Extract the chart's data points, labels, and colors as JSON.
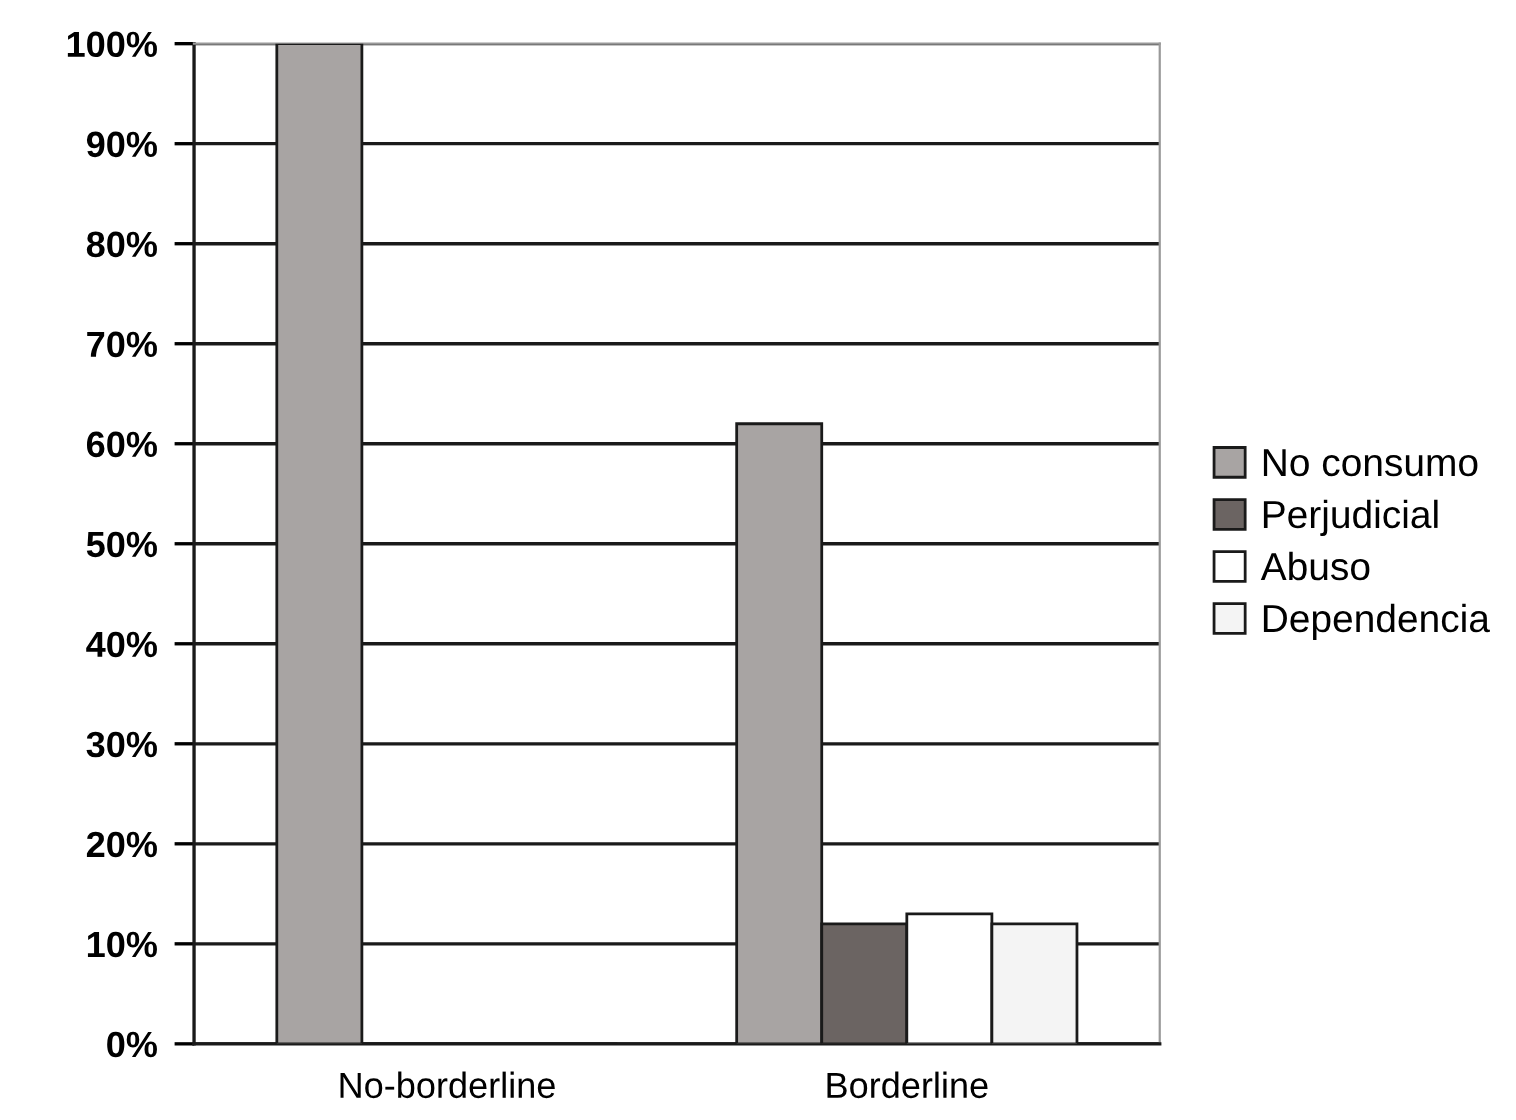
{
  "chart_data": {
    "type": "bar",
    "categories": [
      "No-borderline",
      "Borderline"
    ],
    "series": [
      {
        "name": "No consumo",
        "color": "#a8a4a3",
        "values": [
          100,
          62
        ]
      },
      {
        "name": "Perjudicial",
        "color": "#6b6462",
        "values": [
          0,
          12
        ]
      },
      {
        "name": "Abuso",
        "color": "#ffffff",
        "values": [
          0,
          13
        ]
      },
      {
        "name": "Dependencia",
        "color": "#f4f4f4",
        "values": [
          0,
          12
        ]
      }
    ],
    "ylim": [
      0,
      100
    ],
    "yticks": [
      {
        "value": 0,
        "label": "0%"
      },
      {
        "value": 10,
        "label": "10%"
      },
      {
        "value": 20,
        "label": "20%"
      },
      {
        "value": 30,
        "label": "30%"
      },
      {
        "value": 40,
        "label": "40%"
      },
      {
        "value": 50,
        "label": "50%"
      },
      {
        "value": 60,
        "label": "60%"
      },
      {
        "value": 70,
        "label": "70%"
      },
      {
        "value": 80,
        "label": "80%"
      },
      {
        "value": 90,
        "label": "90%"
      },
      {
        "value": 100,
        "label": "100%"
      }
    ],
    "grid": "y",
    "legend": "right"
  }
}
